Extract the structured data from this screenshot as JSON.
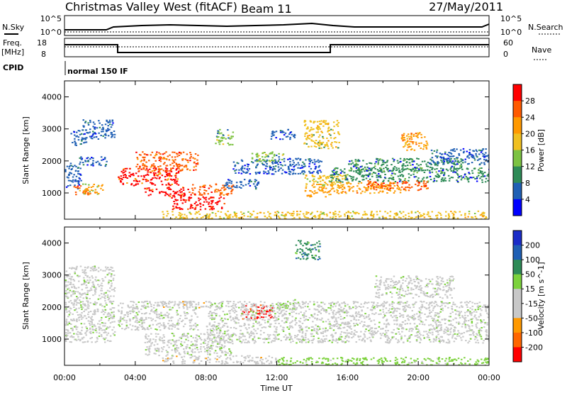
{
  "header": {
    "title": "Christmas Valley West (fitACF)",
    "beam": "Beam 11",
    "date": "27/May/2011"
  },
  "top_panels": {
    "nsky_label": "N.Sky",
    "nsearch_label": "N.Search",
    "freq_label": "Freq.",
    "freq_unit": "[MHz]",
    "nave_label": "Nave",
    "cpid_label": "CPID",
    "cpid_text": "normal 150 IF",
    "noise_ticks_left": [
      "10^5",
      "10^0"
    ],
    "noise_ticks_right": [
      "10^5",
      "10^0"
    ],
    "freq_ticks_left": [
      "18",
      "8"
    ],
    "freq_ticks_right": [
      "60",
      "0"
    ]
  },
  "colors": {
    "power_scale": [
      "#0000ff",
      "#1f5fb4",
      "#2e8b57",
      "#7cc242",
      "#f0c020",
      "#ff9900",
      "#ff5a00",
      "#ff0000"
    ],
    "velocity_scale": [
      "#1a2cc8",
      "#1f5fb4",
      "#2e8b57",
      "#7cd23c",
      "#c8c8c8",
      "#c8c8c8",
      "#ff9900",
      "#ff6600",
      "#ff0000"
    ],
    "ground_scatter": "#c8c8c8"
  },
  "chart_data": [
    {
      "type": "heatmap",
      "title": "",
      "xlabel": "",
      "ylabel": "Slant Range [km]",
      "xlim": [
        "00:00",
        "24:00"
      ],
      "ylim": [
        180,
        4500
      ],
      "x_ticks": [
        "00:00",
        "04:00",
        "08:00",
        "12:00",
        "16:00",
        "20:00",
        "00:00"
      ],
      "y_ticks": [
        "1000",
        "2000",
        "3000",
        "4000"
      ],
      "colorbar": {
        "label": "Power [dB]",
        "range": [
          0,
          32
        ],
        "ticks": [
          "4",
          "8",
          "12",
          "16",
          "20",
          "24",
          "28"
        ]
      },
      "value_key": "power_db",
      "regions": [
        {
          "t": [
            0.0,
            0.9
          ],
          "r": [
            1150,
            1950
          ],
          "power_db": 6
        },
        {
          "t": [
            0.3,
            1.2
          ],
          "r": [
            2500,
            3000
          ],
          "power_db": 6
        },
        {
          "t": [
            0.5,
            1.3
          ],
          "r": [
            900,
            1250
          ],
          "power_db": 24
        },
        {
          "t": [
            0.8,
            2.4
          ],
          "r": [
            1850,
            2150
          ],
          "power_db": 6
        },
        {
          "t": [
            1.0,
            2.8
          ],
          "r": [
            2700,
            3300
          ],
          "power_db": 5
        },
        {
          "t": [
            1.0,
            2.2
          ],
          "r": [
            950,
            1300
          ],
          "power_db": 20
        },
        {
          "t": [
            3.0,
            6.5
          ],
          "r": [
            1250,
            1800
          ],
          "power_db": 28
        },
        {
          "t": [
            4.0,
            7.5
          ],
          "r": [
            1700,
            2300
          ],
          "power_db": 26
        },
        {
          "t": [
            4.5,
            7.0
          ],
          "r": [
            900,
            1200
          ],
          "power_db": 29
        },
        {
          "t": [
            6.0,
            9.0
          ],
          "r": [
            500,
            900
          ],
          "power_db": 30
        },
        {
          "t": [
            7.0,
            9.5
          ],
          "r": [
            950,
            1300
          ],
          "power_db": 26
        },
        {
          "t": [
            9.5,
            14.5
          ],
          "r": [
            1600,
            2100
          ],
          "power_db": 7
        },
        {
          "t": [
            10.5,
            12.5
          ],
          "r": [
            2000,
            2300
          ],
          "power_db": 12
        },
        {
          "t": [
            9.0,
            11.0
          ],
          "r": [
            1150,
            1450
          ],
          "power_db": 5
        },
        {
          "t": [
            11.5,
            13.0
          ],
          "r": [
            2700,
            3000
          ],
          "power_db": 4
        },
        {
          "t": [
            13.5,
            15.0
          ],
          "r": [
            900,
            1300
          ],
          "power_db": 22
        },
        {
          "t": [
            13.5,
            16.0
          ],
          "r": [
            1250,
            1600
          ],
          "power_db": 18
        },
        {
          "t": [
            15.0,
            24.0
          ],
          "r": [
            1350,
            1800
          ],
          "power_db": 8
        },
        {
          "t": [
            15.0,
            19.0
          ],
          "r": [
            1000,
            1350
          ],
          "power_db": 22
        },
        {
          "t": [
            17.0,
            20.5
          ],
          "r": [
            1100,
            1400
          ],
          "power_db": 26
        },
        {
          "t": [
            16.0,
            22.5
          ],
          "r": [
            1700,
            2100
          ],
          "power_db": 9
        },
        {
          "t": [
            20.5,
            24.0
          ],
          "r": [
            1900,
            2400
          ],
          "power_db": 6
        },
        {
          "t": [
            19.0,
            20.5
          ],
          "r": [
            2300,
            2900
          ],
          "power_db": 22
        },
        {
          "t": [
            13.5,
            15.5
          ],
          "r": [
            2400,
            3300
          ],
          "power_db": 16
        },
        {
          "t": [
            8.5,
            9.5
          ],
          "r": [
            2500,
            3000
          ],
          "power_db": 12
        },
        {
          "t": [
            5.5,
            24.0
          ],
          "r": [
            200,
            450
          ],
          "power_db": 18
        }
      ]
    },
    {
      "type": "heatmap",
      "title": "",
      "xlabel": "Time UT",
      "ylabel": "Slant Range [km]",
      "xlim": [
        "00:00",
        "24:00"
      ],
      "ylim": [
        180,
        4500
      ],
      "x_ticks": [
        "00:00",
        "04:00",
        "08:00",
        "12:00",
        "16:00",
        "20:00",
        "00:00"
      ],
      "y_ticks": [
        "1000",
        "2000",
        "3000",
        "4000"
      ],
      "colorbar": {
        "label": "Velocity [m s^-1]",
        "range": [
          -250,
          250
        ],
        "ticks": [
          "200",
          "100",
          "50",
          "15",
          "-15",
          "-50",
          "-100",
          "-200"
        ]
      },
      "value_key": "velocity",
      "regions": [
        {
          "t": [
            0.0,
            2.8
          ],
          "r": [
            900,
            3300
          ],
          "velocity": 0
        },
        {
          "t": [
            3.0,
            7.5
          ],
          "r": [
            1300,
            2200
          ],
          "velocity": 0
        },
        {
          "t": [
            4.5,
            9.5
          ],
          "r": [
            500,
            1200
          ],
          "velocity": 0
        },
        {
          "t": [
            10.0,
            11.8
          ],
          "r": [
            1650,
            2100
          ],
          "velocity": -210
        },
        {
          "t": [
            11.8,
            13.0
          ],
          "r": [
            1950,
            2250
          ],
          "velocity": 40
        },
        {
          "t": [
            5.5,
            8.0
          ],
          "r": [
            2000,
            2200
          ],
          "velocity": -60
        },
        {
          "t": [
            8.0,
            24.0
          ],
          "r": [
            900,
            2200
          ],
          "velocity": 0
        },
        {
          "t": [
            17.5,
            22.0
          ],
          "r": [
            2300,
            3000
          ],
          "velocity": 0
        },
        {
          "t": [
            5.5,
            12.0
          ],
          "r": [
            250,
            500
          ],
          "velocity": -60
        },
        {
          "t": [
            12.0,
            24.0
          ],
          "r": [
            200,
            450
          ],
          "velocity": 35
        },
        {
          "t": [
            13.0,
            14.5
          ],
          "r": [
            3500,
            4100
          ],
          "velocity": 120
        }
      ]
    }
  ]
}
